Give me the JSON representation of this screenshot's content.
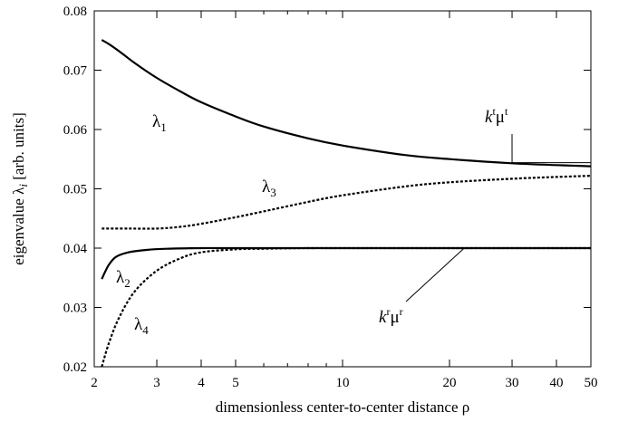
{
  "chart_data": {
    "type": "line",
    "xlabel": "dimensionless center-to-center distance ρ",
    "ylabel_main": "eigenvalue ",
    "ylabel_symbol": "λ",
    "ylabel_sub": "i",
    "ylabel_units": " [arb. units]",
    "x_scale": "log",
    "xlim": [
      2,
      50
    ],
    "ylim": [
      0.02,
      0.08
    ],
    "x_ticks": [
      2,
      3,
      4,
      5,
      10,
      20,
      30,
      40,
      50
    ],
    "x_tick_labels": [
      "2",
      "3",
      "4",
      "5",
      "10",
      "20",
      "30",
      "40",
      "50"
    ],
    "y_ticks": [
      0.02,
      0.03,
      0.04,
      0.05,
      0.06,
      0.07,
      0.08
    ],
    "y_tick_labels": [
      "0.02",
      "0.03",
      "0.04",
      "0.05",
      "0.06",
      "0.07",
      "0.08"
    ],
    "grid": false,
    "series": [
      {
        "name": "λ1",
        "style": "solid",
        "x": [
          2.1,
          2.2,
          2.4,
          2.6,
          3,
          3.5,
          4,
          5,
          6,
          8,
          10,
          15,
          20,
          30,
          40,
          50
        ],
        "y": [
          0.0751,
          0.0744,
          0.0728,
          0.0712,
          0.0687,
          0.0664,
          0.0646,
          0.0622,
          0.0605,
          0.0585,
          0.0573,
          0.0557,
          0.055,
          0.0543,
          0.054,
          0.0538
        ]
      },
      {
        "name": "λ2",
        "style": "solid",
        "x": [
          2.1,
          2.15,
          2.2,
          2.3,
          2.5,
          2.8,
          3.2,
          4,
          5,
          10,
          20,
          50
        ],
        "y": [
          0.0348,
          0.0361,
          0.0372,
          0.0385,
          0.0393,
          0.0397,
          0.0399,
          0.04,
          0.04,
          0.04,
          0.04,
          0.04
        ]
      },
      {
        "name": "λ3",
        "style": "dashed",
        "x": [
          2.1,
          2.5,
          3,
          3.5,
          4,
          5,
          6,
          8,
          10,
          15,
          20,
          30,
          40,
          50
        ],
        "y": [
          0.0433,
          0.0433,
          0.0433,
          0.0436,
          0.0441,
          0.0452,
          0.0462,
          0.0478,
          0.0489,
          0.0504,
          0.0511,
          0.0517,
          0.052,
          0.0522
        ]
      },
      {
        "name": "λ4",
        "style": "dashed",
        "x": [
          2.1,
          2.2,
          2.35,
          2.6,
          3,
          3.5,
          4,
          5,
          6,
          8,
          10,
          20,
          50
        ],
        "y": [
          0.02,
          0.024,
          0.0283,
          0.0327,
          0.0362,
          0.0383,
          0.0393,
          0.0398,
          0.0399,
          0.04,
          0.04,
          0.04,
          0.04
        ]
      }
    ],
    "annotations": {
      "lambda": "λ",
      "l1_sub": "1",
      "l2_sub": "2",
      "l3_sub": "3",
      "l4_sub": "4",
      "kt_k": "k",
      "kt_sup1": "t",
      "kt_mu": "μ",
      "kt_sup2": "t",
      "kr_k": "k",
      "kr_sup1": "r",
      "kr_mu": "μ",
      "kr_sup2": "r"
    },
    "annotation_arrows": {
      "kt": {
        "from_x": 30,
        "from_y": 0.0538,
        "to_x": 50,
        "to_y": 0.0538
      },
      "kr": {
        "from_x": 22,
        "from_y": 0.04,
        "to_x": 15,
        "to_y": 0.034
      }
    }
  }
}
